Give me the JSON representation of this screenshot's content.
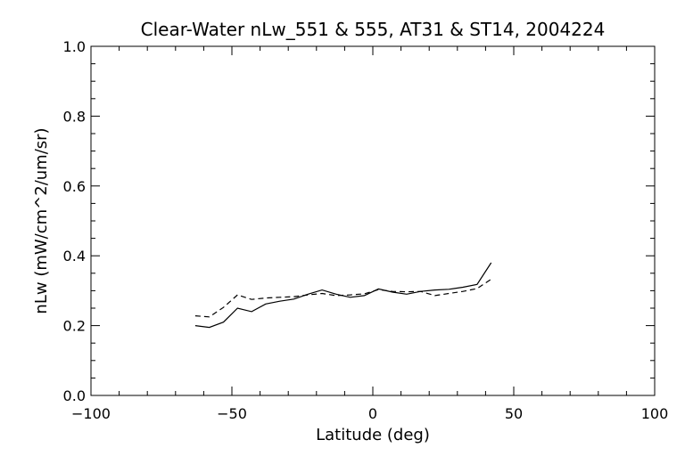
{
  "chart_data": {
    "type": "line",
    "title": "Clear-Water nLw_551 & 555, AT31 & ST14, 2004224",
    "xlabel": "Latitude (deg)",
    "ylabel": "nLw (mW/cm^2/um/sr)",
    "xlim": [
      -100,
      100
    ],
    "ylim": [
      0.0,
      1.0
    ],
    "x_ticks": [
      -100,
      -50,
      0,
      50,
      100
    ],
    "x_tick_labels": [
      "−100",
      "−50",
      "0",
      "50",
      "100"
    ],
    "y_ticks": [
      0.0,
      0.2,
      0.4,
      0.6,
      0.8,
      1.0
    ],
    "y_tick_labels": [
      "0.0",
      "0.2",
      "0.4",
      "0.6",
      "0.8",
      "1.0"
    ],
    "x_minor_step": 10,
    "y_minor_step": 0.05,
    "grid": false,
    "legend": "none",
    "series": [
      {
        "style": "solid",
        "color": "#000000",
        "x": [
          -63,
          -58,
          -53,
          -48,
          -43,
          -38,
          -33,
          -28,
          -23,
          -18,
          -13,
          -8,
          -3,
          2,
          7,
          12,
          17,
          22,
          27,
          32,
          37,
          42
        ],
        "y": [
          0.2,
          0.195,
          0.21,
          0.25,
          0.24,
          0.262,
          0.27,
          0.276,
          0.29,
          0.302,
          0.29,
          0.281,
          0.286,
          0.305,
          0.296,
          0.29,
          0.298,
          0.302,
          0.304,
          0.31,
          0.318,
          0.38
        ]
      },
      {
        "style": "dashed",
        "color": "#000000",
        "x": [
          -63,
          -58,
          -53,
          -48,
          -43,
          -38,
          -33,
          -28,
          -23,
          -18,
          -13,
          -8,
          -3,
          2,
          7,
          12,
          17,
          22,
          27,
          32,
          37,
          42
        ],
        "y": [
          0.228,
          0.225,
          0.252,
          0.288,
          0.275,
          0.279,
          0.281,
          0.283,
          0.288,
          0.292,
          0.286,
          0.288,
          0.291,
          0.303,
          0.298,
          0.297,
          0.298,
          0.286,
          0.292,
          0.298,
          0.306,
          0.333
        ]
      }
    ]
  }
}
